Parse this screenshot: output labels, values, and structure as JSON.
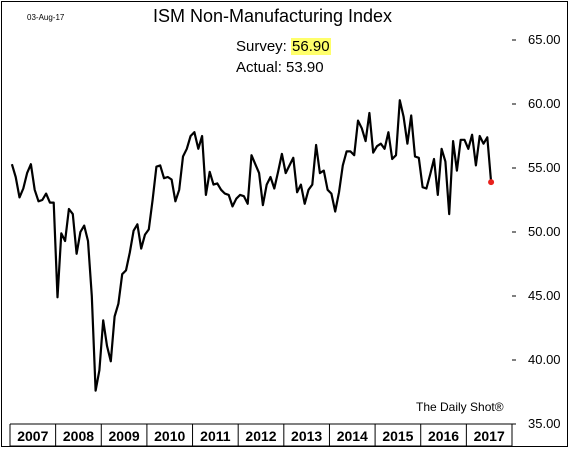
{
  "header": {
    "date": "03-Aug-17",
    "survey_label": "Survey:",
    "survey_value": "56.90",
    "actual_label": "Actual:",
    "actual_value": "53.90",
    "highlight_color": "#ffff6b"
  },
  "watermark": "The Daily Shot®",
  "chart_data": {
    "type": "line",
    "title": "ISM Non-Manufacturing Index",
    "xlabel": "",
    "ylabel": "",
    "ylim": [
      35,
      65
    ],
    "yticks": [
      "35.00",
      "40.00",
      "45.00",
      "50.00",
      "55.00",
      "60.00",
      "65.00"
    ],
    "x_categories": [
      "2007",
      "2008",
      "2009",
      "2010",
      "2011",
      "2012",
      "2013",
      "2014",
      "2015",
      "2016",
      "2017"
    ],
    "grid": false,
    "line_color": "#000000",
    "last_point_color": "#e8211c",
    "series": [
      {
        "start": "2007-01",
        "frequency": "monthly",
        "values": [
          55.3,
          54.3,
          52.7,
          53.4,
          54.6,
          55.3,
          53.3,
          52.4,
          52.5,
          53.0,
          52.3,
          52.3,
          44.9,
          49.9,
          49.3,
          51.8,
          51.4,
          48.3,
          50.0,
          50.5,
          49.3,
          45.0,
          37.6,
          39.2,
          43.1,
          41.1,
          39.9,
          43.4,
          44.4,
          46.7,
          47.0,
          48.4,
          50.1,
          50.6,
          48.7,
          49.8,
          50.2,
          52.5,
          55.1,
          55.2,
          54.2,
          54.3,
          54.1,
          52.4,
          53.3,
          55.9,
          56.5,
          57.5,
          57.8,
          56.5,
          57.5,
          52.9,
          54.7,
          53.7,
          53.8,
          53.3,
          53.0,
          52.9,
          52.0,
          52.6,
          52.9,
          52.8,
          52.2,
          56.0,
          55.3,
          54.6,
          52.1,
          53.7,
          54.3,
          53.4,
          54.7,
          56.1,
          54.6,
          55.2,
          55.8,
          53.1,
          53.7,
          52.2,
          53.3,
          53.7,
          56.8,
          54.6,
          54.8,
          53.3,
          53.0,
          51.6,
          53.1,
          55.2,
          56.3,
          56.3,
          56.0,
          58.7,
          58.1,
          57.1,
          59.3,
          56.2,
          56.7,
          56.9,
          56.5,
          57.8,
          55.7,
          56.0,
          60.3,
          59.0,
          56.9,
          59.1,
          55.9,
          55.8,
          53.5,
          53.4,
          54.5,
          55.7,
          52.9,
          56.5,
          55.5,
          51.4,
          57.1,
          54.8,
          57.2,
          57.2,
          56.5,
          57.6,
          55.2,
          57.5,
          56.9,
          57.4,
          53.9
        ]
      }
    ]
  }
}
